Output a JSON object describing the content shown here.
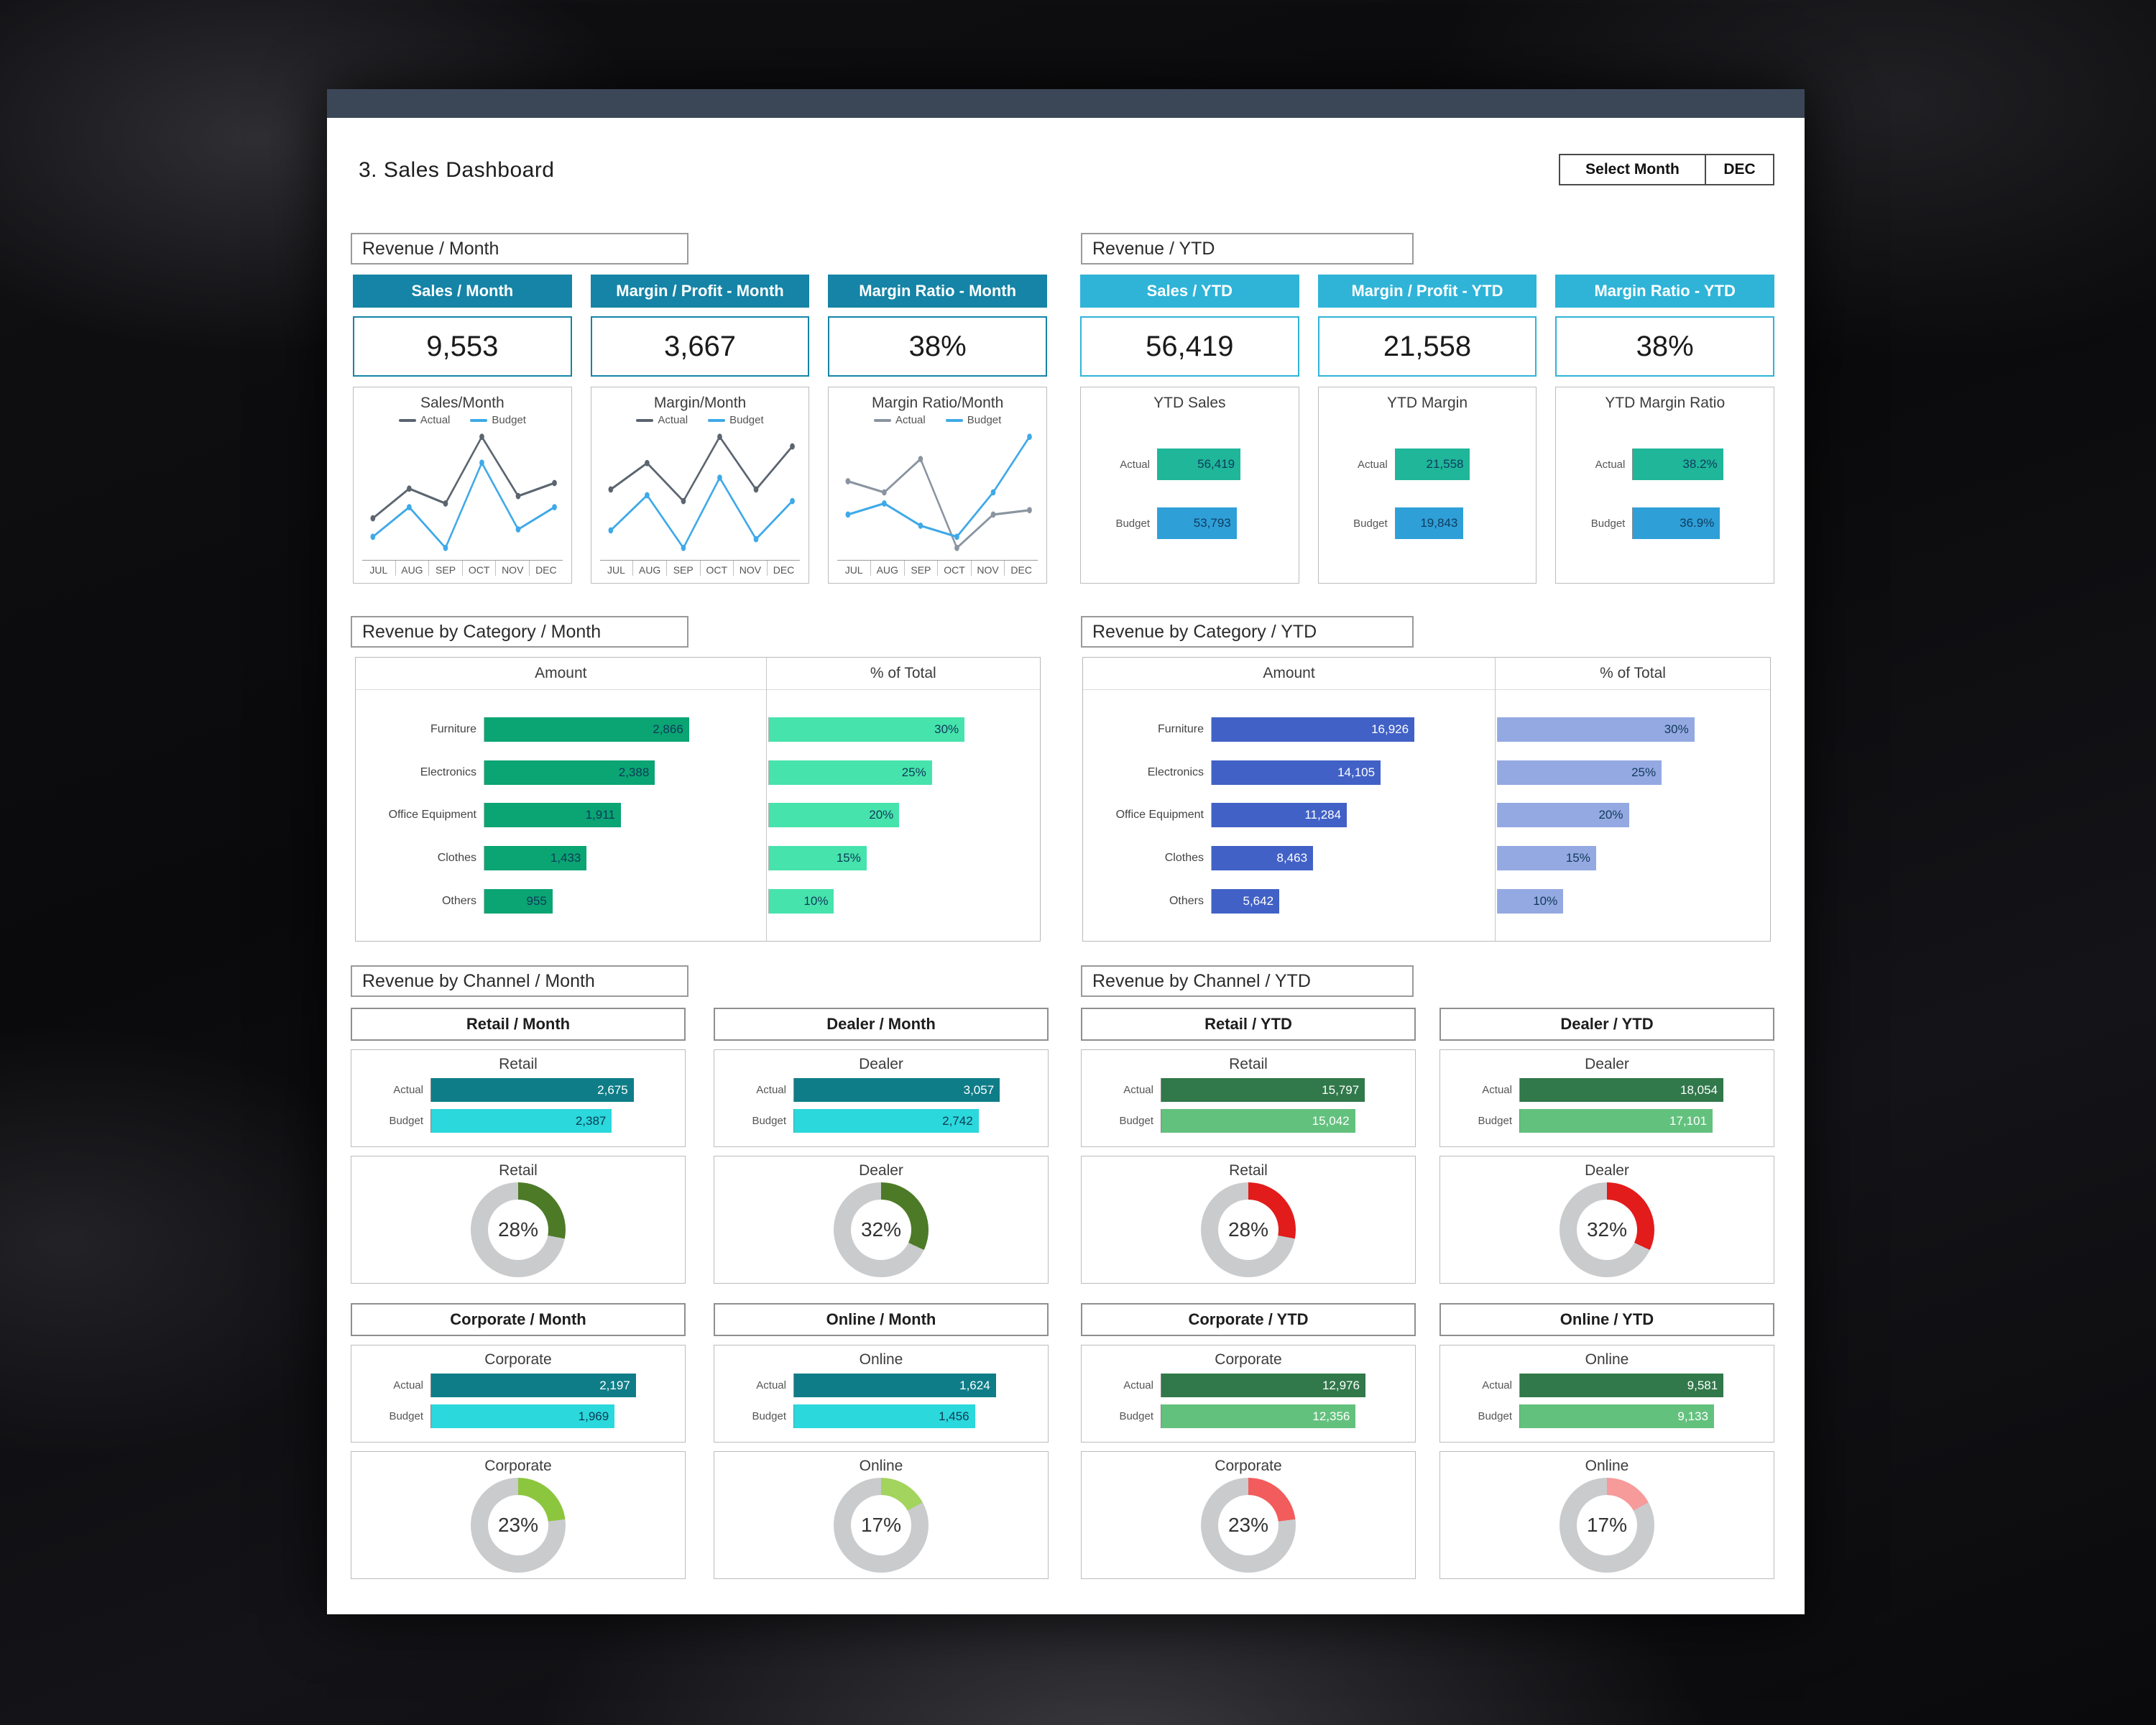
{
  "window": {
    "title": "3. Sales Dashboard",
    "select_month_label": "Select Month",
    "month_value": "DEC"
  },
  "section_labels": {
    "revenue_month": "Revenue / Month",
    "revenue_ytd": "Revenue / YTD",
    "category_month": "Revenue by Category / Month",
    "category_ytd": "Revenue by Category / YTD",
    "channel_month": "Revenue by Channel / Month",
    "channel_ytd": "Revenue by Channel / YTD"
  },
  "kpis": [
    {
      "header": "Sales / Month",
      "value": "9,553"
    },
    {
      "header": "Margin / Profit - Month",
      "value": "3,667"
    },
    {
      "header": "Margin Ratio - Month",
      "value": "38%"
    },
    {
      "header": "Sales / YTD",
      "value": "56,419"
    },
    {
      "header": "Margin / Profit - YTD",
      "value": "21,558"
    },
    {
      "header": "Margin Ratio - YTD",
      "value": "38%"
    }
  ],
  "channel_headers": [
    "Retail / Month",
    "Dealer / Month",
    "Corporate / Month",
    "Online / Month",
    "Retail / YTD",
    "Dealer / YTD",
    "Corporate / YTD",
    "Online / YTD"
  ],
  "colors": {
    "month_accent": "#1584a6",
    "ytd_accent": "#2fb4d8",
    "topbar": "#3b4757"
  },
  "chart_data": [
    {
      "type": "line",
      "title": "Sales/Month",
      "x": [
        "JUL",
        "AUG",
        "SEP",
        "OCT",
        "NOV",
        "DEC"
      ],
      "series": [
        {
          "name": "Actual",
          "color": "#5b6570",
          "values": [
            8600,
            9400,
            9000,
            10800,
            9200,
            9553
          ]
        },
        {
          "name": "Budget",
          "color": "#3fa9e8",
          "values": [
            8100,
            8900,
            7800,
            10100,
            8300,
            8900
          ]
        }
      ]
    },
    {
      "type": "line",
      "title": "Margin/Month",
      "x": [
        "JUL",
        "AUG",
        "SEP",
        "OCT",
        "NOV",
        "DEC"
      ],
      "series": [
        {
          "name": "Actual",
          "color": "#5b6570",
          "values": [
            3520,
            3610,
            3480,
            3700,
            3520,
            3667
          ]
        },
        {
          "name": "Budget",
          "color": "#3fa9e8",
          "values": [
            3380,
            3500,
            3320,
            3560,
            3350,
            3480
          ]
        }
      ]
    },
    {
      "type": "line",
      "title": "Margin Ratio/Month",
      "x": [
        "JUL",
        "AUG",
        "SEP",
        "OCT",
        "NOV",
        "DEC"
      ],
      "series": [
        {
          "name": "Actual",
          "color": "#8a94a0",
          "values": [
            41,
            40,
            43,
            35,
            38,
            38.4
          ]
        },
        {
          "name": "Budget",
          "color": "#3fa9e8",
          "values": [
            38,
            39,
            37,
            36,
            40,
            45
          ]
        }
      ]
    },
    {
      "type": "bar",
      "title": "YTD Sales",
      "max": 90000,
      "bar_colors": [
        "#1fb699",
        "#2f9fd8"
      ],
      "text_colors": [
        "#0f3c5e",
        "#0f3c5e"
      ],
      "rows": [
        {
          "label": "Actual",
          "value": 56419,
          "display": "56,419"
        },
        {
          "label": "Budget",
          "value": 53793,
          "display": "53,793"
        }
      ]
    },
    {
      "type": "bar",
      "title": "YTD Margin",
      "max": 38500,
      "bar_colors": [
        "#1fb699",
        "#2f9fd8"
      ],
      "text_colors": [
        "#0f3c5e",
        "#0f3c5e"
      ],
      "rows": [
        {
          "label": "Actual",
          "value": 21558,
          "display": "21,558"
        },
        {
          "label": "Budget",
          "value": 19843,
          "display": "19,843"
        }
      ]
    },
    {
      "type": "bar",
      "title": "YTD Margin Ratio",
      "max": 56,
      "bar_colors": [
        "#1fb699",
        "#2f9fd8"
      ],
      "text_colors": [
        "#0f3c5e",
        "#0f3c5e"
      ],
      "rows": [
        {
          "label": "Actual",
          "value": 38.2,
          "display": "38.2%"
        },
        {
          "label": "Budget",
          "value": 36.9,
          "display": "36.9%"
        }
      ]
    },
    {
      "type": "bar",
      "title": "Amount",
      "max": 3800,
      "bar_colors": [
        "#0aa573"
      ],
      "text_colors": [
        "#10395a"
      ],
      "rows": [
        {
          "label": "Furniture",
          "value": 2866,
          "display": "2,866"
        },
        {
          "label": "Electronics",
          "value": 2388,
          "display": "2,388"
        },
        {
          "label": "Office Equipment",
          "value": 1911,
          "display": "1,911"
        },
        {
          "label": "Clothes",
          "value": 1433,
          "display": "1,433"
        },
        {
          "label": "Others",
          "value": 955,
          "display": "955"
        }
      ]
    },
    {
      "type": "bar",
      "title": "% of Total",
      "max": 40,
      "bar_colors": [
        "#46e3ac"
      ],
      "text_colors": [
        "#10395a"
      ],
      "rows": [
        {
          "label": "Furniture",
          "value": 30,
          "display": "30%"
        },
        {
          "label": "Electronics",
          "value": 25,
          "display": "25%"
        },
        {
          "label": "Office Equipment",
          "value": 20,
          "display": "20%"
        },
        {
          "label": "Clothes",
          "value": 15,
          "display": "15%"
        },
        {
          "label": "Others",
          "value": 10,
          "display": "10%"
        }
      ]
    },
    {
      "type": "bar",
      "title": "Amount",
      "max": 22800,
      "bar_colors": [
        "#4161c6"
      ],
      "text_colors": [
        "#ffffff"
      ],
      "rows": [
        {
          "label": "Furniture",
          "value": 16926,
          "display": "16,926"
        },
        {
          "label": "Electronics",
          "value": 14105,
          "display": "14,105"
        },
        {
          "label": "Office Equipment",
          "value": 11284,
          "display": "11,284"
        },
        {
          "label": "Clothes",
          "value": 8463,
          "display": "8,463"
        },
        {
          "label": "Others",
          "value": 5642,
          "display": "5,642"
        }
      ]
    },
    {
      "type": "bar",
      "title": "% of Total",
      "max": 40,
      "bar_colors": [
        "#94a9e2"
      ],
      "text_colors": [
        "#10395a"
      ],
      "rows": [
        {
          "label": "Furniture",
          "value": 30,
          "display": "30%"
        },
        {
          "label": "Electronics",
          "value": 25,
          "display": "25%"
        },
        {
          "label": "Office Equipment",
          "value": 20,
          "display": "20%"
        },
        {
          "label": "Clothes",
          "value": 15,
          "display": "15%"
        },
        {
          "label": "Others",
          "value": 10,
          "display": "10%"
        }
      ]
    },
    {
      "type": "bar",
      "title": "Retail",
      "max": 3200,
      "bar_colors": [
        "#0e7d88",
        "#2bd8dc"
      ],
      "text_colors": [
        "#ffffff",
        "#0e3a52"
      ],
      "rows": [
        {
          "label": "Actual",
          "value": 2675,
          "display": "2,675"
        },
        {
          "label": "Budget",
          "value": 2387,
          "display": "2,387"
        }
      ]
    },
    {
      "type": "bar",
      "title": "Dealer",
      "max": 3600,
      "bar_colors": [
        "#0e7d88",
        "#2bd8dc"
      ],
      "text_colors": [
        "#ffffff",
        "#0e3a52"
      ],
      "rows": [
        {
          "label": "Actual",
          "value": 3057,
          "display": "3,057"
        },
        {
          "label": "Budget",
          "value": 2742,
          "display": "2,742"
        }
      ]
    },
    {
      "type": "bar",
      "title": "Corporate",
      "max": 2600,
      "bar_colors": [
        "#0e7d88",
        "#2bd8dc"
      ],
      "text_colors": [
        "#ffffff",
        "#0e3a52"
      ],
      "rows": [
        {
          "label": "Actual",
          "value": 2197,
          "display": "2,197"
        },
        {
          "label": "Budget",
          "value": 1969,
          "display": "1,969"
        }
      ]
    },
    {
      "type": "bar",
      "title": "Online",
      "max": 1950,
      "bar_colors": [
        "#0e7d88",
        "#2bd8dc"
      ],
      "text_colors": [
        "#ffffff",
        "#0e3a52"
      ],
      "rows": [
        {
          "label": "Actual",
          "value": 1624,
          "display": "1,624"
        },
        {
          "label": "Budget",
          "value": 1456,
          "display": "1,456"
        }
      ]
    },
    {
      "type": "bar",
      "title": "Retail",
      "max": 18800,
      "bar_colors": [
        "#31784a",
        "#63c17e"
      ],
      "text_colors": [
        "#ffffff",
        "#ffffff"
      ],
      "rows": [
        {
          "label": "Actual",
          "value": 15797,
          "display": "15,797"
        },
        {
          "label": "Budget",
          "value": 15042,
          "display": "15,042"
        }
      ]
    },
    {
      "type": "bar",
      "title": "Dealer",
      "max": 21500,
      "bar_colors": [
        "#31784a",
        "#63c17e"
      ],
      "text_colors": [
        "#ffffff",
        "#ffffff"
      ],
      "rows": [
        {
          "label": "Actual",
          "value": 18054,
          "display": "18,054"
        },
        {
          "label": "Budget",
          "value": 17101,
          "display": "17,101"
        }
      ]
    },
    {
      "type": "bar",
      "title": "Corporate",
      "max": 15400,
      "bar_colors": [
        "#31784a",
        "#63c17e"
      ],
      "text_colors": [
        "#ffffff",
        "#ffffff"
      ],
      "rows": [
        {
          "label": "Actual",
          "value": 12976,
          "display": "12,976"
        },
        {
          "label": "Budget",
          "value": 12356,
          "display": "12,356"
        }
      ]
    },
    {
      "type": "bar",
      "title": "Online",
      "max": 11400,
      "bar_colors": [
        "#31784a",
        "#63c17e"
      ],
      "text_colors": [
        "#ffffff",
        "#ffffff"
      ],
      "rows": [
        {
          "label": "Actual",
          "value": 9581,
          "display": "9,581"
        },
        {
          "label": "Budget",
          "value": 9133,
          "display": "9,133"
        }
      ]
    }
  ],
  "donuts": [
    {
      "title": "Retail",
      "pct": 28,
      "display": "28%",
      "color": "#4d7a27",
      "track": "#c9cbcd"
    },
    {
      "title": "Dealer",
      "pct": 32,
      "display": "32%",
      "color": "#4d7a27",
      "track": "#c9cbcd"
    },
    {
      "title": "Corporate",
      "pct": 23,
      "display": "23%",
      "color": "#8cc63e",
      "track": "#c9cbcd"
    },
    {
      "title": "Online",
      "pct": 17,
      "display": "17%",
      "color": "#a2d45e",
      "track": "#c9cbcd"
    },
    {
      "title": "Retail",
      "pct": 28,
      "display": "28%",
      "color": "#e21b1b",
      "track": "#c9cbcd"
    },
    {
      "title": "Dealer",
      "pct": 32,
      "display": "32%",
      "color": "#e21b1b",
      "track": "#c9cbcd"
    },
    {
      "title": "Corporate",
      "pct": 23,
      "display": "23%",
      "color": "#f25c5c",
      "track": "#c9cbcd"
    },
    {
      "title": "Online",
      "pct": 17,
      "display": "17%",
      "color": "#f79a9a",
      "track": "#c9cbcd"
    }
  ]
}
